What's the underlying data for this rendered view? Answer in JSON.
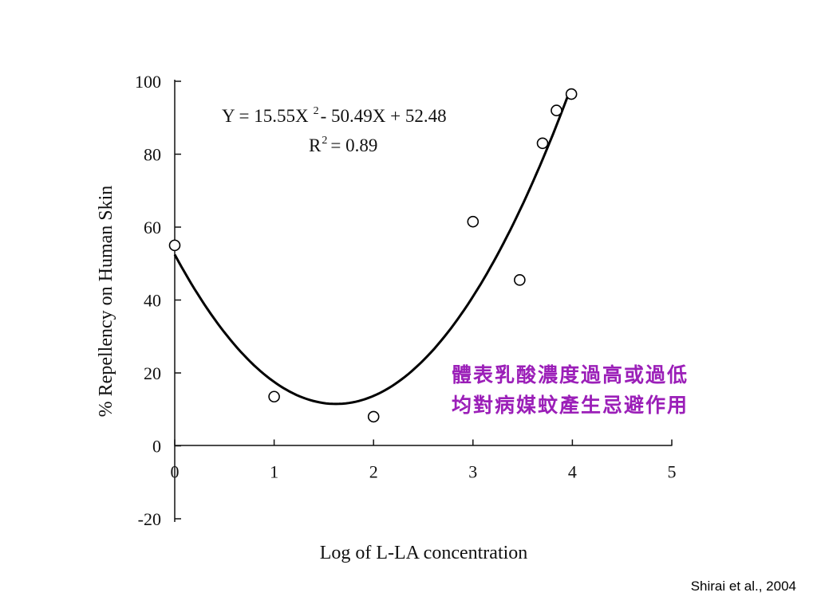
{
  "chart_data": {
    "type": "scatter",
    "xlabel": "Log of L-LA concentration",
    "ylabel": "% Repellency on Human Skin",
    "xlim": [
      0,
      5
    ],
    "ylim": [
      -20,
      100
    ],
    "x_ticks": [
      "0",
      "1",
      "2",
      "3",
      "4",
      "5"
    ],
    "y_ticks": [
      "100",
      "80",
      "60",
      "40",
      "20",
      "0",
      "-20"
    ],
    "points": [
      {
        "x": 0,
        "y": 55
      },
      {
        "x": 1,
        "y": 13.5
      },
      {
        "x": 2,
        "y": 8
      },
      {
        "x": 3,
        "y": 61.5
      },
      {
        "x": 3.47,
        "y": 45.5
      },
      {
        "x": 3.7,
        "y": 83
      },
      {
        "x": 3.84,
        "y": 92
      },
      {
        "x": 3.99,
        "y": 96.5
      }
    ],
    "fit": {
      "a": 15.55,
      "b": -50.49,
      "c": 52.48,
      "x_range": [
        0,
        3.97
      ],
      "equation_left": "Y = 15.55X",
      "equation_exp": "2",
      "equation_right": "- 50.49X + 52.48",
      "r2_text": "R",
      "r2_exp": "2",
      "r2_value": "= 0.89"
    },
    "grid": false
  },
  "annotation": {
    "line1": "體表乳酸濃度過高或過低",
    "line2": "均對病媒蚊產生忌避作用",
    "color": "#9b1fb8"
  },
  "citation": "Shirai et al., 2004"
}
